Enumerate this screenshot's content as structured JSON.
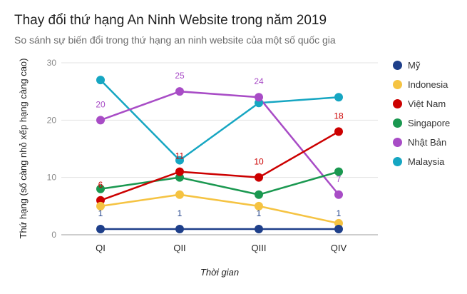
{
  "chart_data": {
    "type": "line",
    "title": "Thay đổi thứ hạng An Ninh Website trong năm 2019",
    "subtitle": "So sánh sự biến đổi trong thứ hạng an ninh website của một số quốc gia",
    "xlabel": "Thời gian",
    "ylabel": "Thứ hạng (số càng nhỏ xếp hạng càng cao)",
    "categories": [
      "QI",
      "QII",
      "QIII",
      "QIV"
    ],
    "ylim": [
      0,
      30
    ],
    "yticks": [
      "0",
      "10",
      "20",
      "30"
    ],
    "grid": true,
    "legend_position": "right",
    "series": [
      {
        "name": "Mỹ",
        "color": "#1e3f8a",
        "values": [
          1,
          1,
          1,
          1
        ],
        "labels": [
          "1",
          "1",
          "1",
          "1"
        ]
      },
      {
        "name": "Indonesia",
        "color": "#f5c342",
        "values": [
          5,
          7,
          5,
          2
        ],
        "labels": [
          "",
          "",
          "",
          ""
        ]
      },
      {
        "name": "Việt Nam",
        "color": "#cc0000",
        "values": [
          6,
          11,
          10,
          18
        ],
        "labels": [
          "6",
          "11",
          "10",
          "18"
        ]
      },
      {
        "name": "Singapore",
        "color": "#1a9850",
        "values": [
          8,
          10,
          7,
          11
        ],
        "labels": [
          "",
          "",
          "",
          ""
        ]
      },
      {
        "name": "Nhật Bản",
        "color": "#a84cc6",
        "values": [
          20,
          25,
          24,
          7
        ],
        "labels": [
          "20",
          "25",
          "24",
          "7"
        ]
      },
      {
        "name": "Malaysia",
        "color": "#16a6c2",
        "values": [
          27,
          13,
          23,
          24
        ],
        "labels": [
          "",
          "",
          "",
          ""
        ]
      }
    ]
  }
}
